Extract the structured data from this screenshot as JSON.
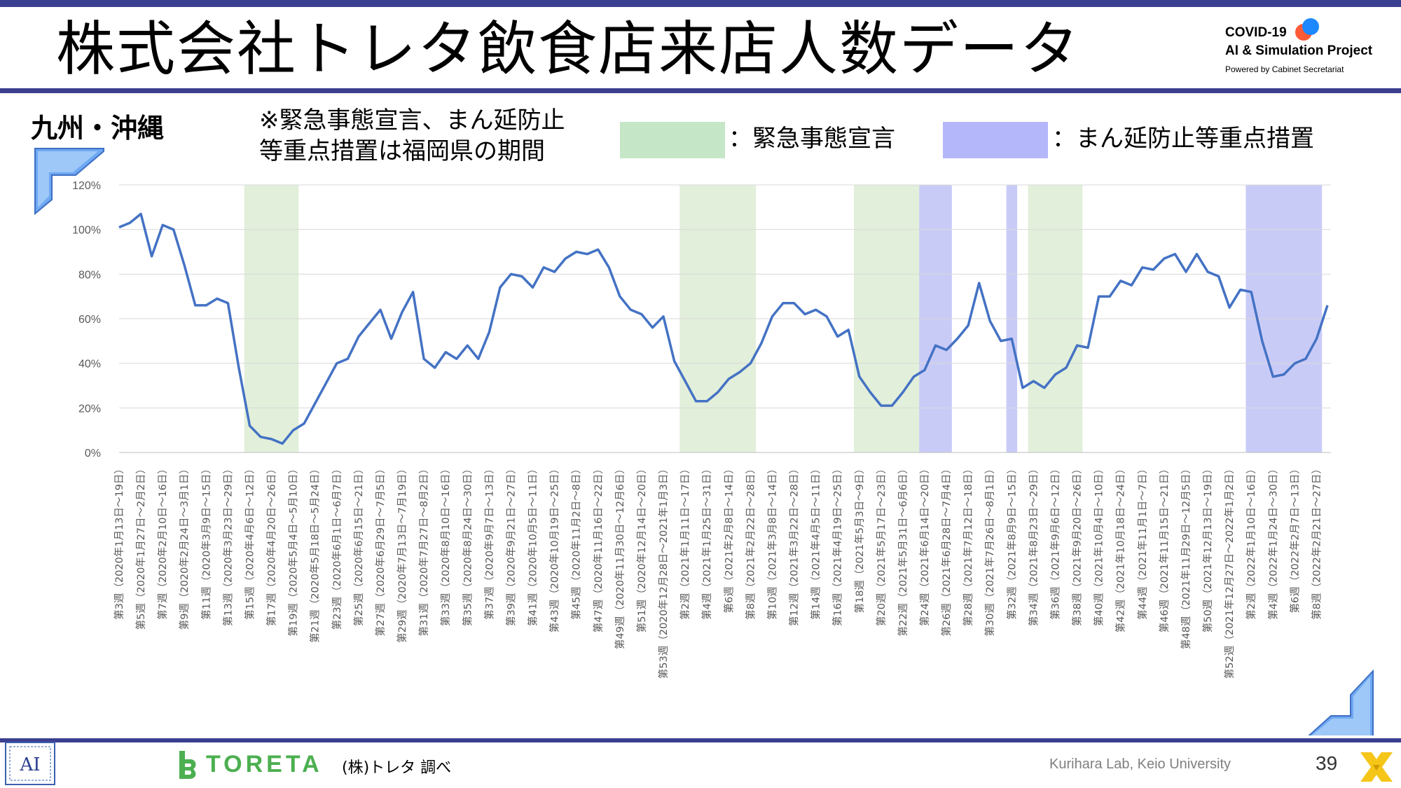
{
  "page": {
    "title": "株式会社トレタ飲食店来店人数データ",
    "region": "九州・沖縄",
    "note_line1": "※緊急事態宣言、まん延防止",
    "note_line2": "等重点措置は福岡県の期間",
    "legend_emergency": "：緊急事態宣言",
    "legend_manen": "：まん延防止等重点措置",
    "project_line1": "COVID-19",
    "project_line2": "AI & Simulation Project",
    "project_line3": "Powered by Cabinet Secretariat",
    "toreta": "TORETA",
    "source": "(株)トレタ 調べ",
    "credit": "Kurihara Lab, Keio University",
    "page_number": "39"
  },
  "colors": {
    "bar": "#3b3f8f",
    "line": "#4472c4",
    "emergency": "#e2efda",
    "emergency_legend": "#c5e6c7",
    "manen": "#c9cbf7",
    "manen_legend": "#b4b7fa",
    "grid": "#d9d9d9",
    "toreta": "#4caf50",
    "x_logo": "#f5c518"
  },
  "icons": [
    "corner-arrow-icon",
    "lab-logo-icon",
    "toreta-logo-icon",
    "x-logo-icon"
  ],
  "chart_data": {
    "type": "line",
    "ylabel": "",
    "xlabel": "",
    "ylim": [
      0,
      1.2
    ],
    "yticks": [
      "0%",
      "20%",
      "40%",
      "60%",
      "80%",
      "100%",
      "120%"
    ],
    "grid": true,
    "x_labels": [
      "第3週（2020年1月13日～19日）",
      "第5週（2020年1月27日～2月2日）",
      "第7週（2020年2月10日～16日）",
      "第9週（2020年2月24日～3月1日）",
      "第11週（2020年3月9日～15日）",
      "第13週（2020年3月23日～29日）",
      "第15週（2020年4月6日～12日）",
      "第17週（2020年4月20日～26日）",
      "第19週（2020年5月4日～5月10日）",
      "第21週（2020年5月18日～5月24日）",
      "第23週（2020年6月1日～6月7日）",
      "第25週（2020年6月15日～21日）",
      "第27週（2020年6月29日～7月5日）",
      "第29週（2020年7月13日～7月19日）",
      "第31週（2020年7月27日～8月2日）",
      "第33週（2020年8月10日～16日）",
      "第35週（2020年8月24日～30日）",
      "第37週（2020年9月7日～13日）",
      "第39週（2020年9月21日～27日）",
      "第41週（2020年10月5日～11日）",
      "第43週（2020年10月19日～25日）",
      "第45週（2020年11月2日～8日）",
      "第47週（2020年11月16日～22日）",
      "第49週（2020年11月30日～12月6日）",
      "第51週（2020年12月14日～20日）",
      "第53週（2020年12月28日～2021年1月3日）",
      "第2週（2021年1月11日～17日）",
      "第4週（2021年1月25日～31日）",
      "第6週（2021年2月8日～14日）",
      "第8週（2021年2月22日～28日）",
      "第10週（2021年3月8日～14日）",
      "第12週（2021年3月22日～28日）",
      "第14週（2021年4月5日～11日）",
      "第16週（2021年4月19日～25日）",
      "第18週（2021年5月3日～9日）",
      "第20週（2021年5月17日～23日）",
      "第22週（2021年5月31日～6月6日）",
      "第24週（2021年6月14日～20日）",
      "第26週（2021年6月28日～7月4日）",
      "第28週（2021年7月12日～18日）",
      "第30週（2021年7月26日～8月1日）",
      "第32週（2021年8月9日～15日）",
      "第34週（2021年8月23日～29日）",
      "第36週（2021年9月6日～12日）",
      "第38週（2021年9月20日～26日）",
      "第40週（2021年10月4日～10日）",
      "第42週（2021年10月18日～24日）",
      "第44週（2021年11月1日～7日）",
      "第46週（2021年11月15日～21日）",
      "第48週（2021年11月29日～12月5日）",
      "第50週（2021年12月13日～19日）",
      "第52週（2021年12月27日～2022年1月2日）",
      "第2週（2022年1月10日～16日）",
      "第4週（2022年1月24日～30日）",
      "第6週（2022年2月7日～13日）",
      "第8週（2022年2月21日～27日）"
    ],
    "series": [
      {
        "values": [
          1.01,
          1.03,
          1.07,
          0.88,
          1.02,
          1.0,
          0.84,
          0.66,
          0.66,
          0.69,
          0.67,
          0.38,
          0.12,
          0.07,
          0.06,
          0.04,
          0.1,
          0.13,
          0.22,
          0.31,
          0.4,
          0.42,
          0.52,
          0.58,
          0.64,
          0.51,
          0.63,
          0.72,
          0.42,
          0.38,
          0.45,
          0.42,
          0.48,
          0.42,
          0.54,
          0.74,
          0.8,
          0.79,
          0.74,
          0.83,
          0.81,
          0.87,
          0.9,
          0.89,
          0.91,
          0.83,
          0.7,
          0.64,
          0.62,
          0.56,
          0.61,
          0.41,
          0.32,
          0.23,
          0.23,
          0.27,
          0.33,
          0.36,
          0.4,
          0.49,
          0.61,
          0.67,
          0.67,
          0.62,
          0.64,
          0.61,
          0.52,
          0.55,
          0.34,
          0.27,
          0.21,
          0.21,
          0.27,
          0.34,
          0.37,
          0.48,
          0.46,
          0.51,
          0.57,
          0.76,
          0.59,
          0.5,
          0.51,
          0.29,
          0.32,
          0.29,
          0.35,
          0.38,
          0.48,
          0.47,
          0.7,
          0.7,
          0.77,
          0.75,
          0.83,
          0.82,
          0.87,
          0.89,
          0.81,
          0.89,
          0.81,
          0.79,
          0.65,
          0.73,
          0.72,
          0.5,
          0.34,
          0.35,
          0.4,
          0.42,
          0.51,
          0.66
        ]
      }
    ],
    "shaded_periods": [
      {
        "type": "emergency",
        "label": "緊急事態宣言",
        "from": "第15週（2020年4月6日～12日）",
        "to": "第19週（2020年5月4日～5月10日）"
      },
      {
        "type": "emergency",
        "label": "緊急事態宣言",
        "from": "第2週（2021年1月11日～17日）",
        "to": "第8週（2021年2月22日～28日）"
      },
      {
        "type": "emergency",
        "label": "緊急事態宣言",
        "from": "第18週（2021年5月3日～9日）",
        "to": "第24週（2021年6月14日～20日）"
      },
      {
        "type": "manen",
        "label": "まん延防止等重点措置",
        "from": "第24週（2021年6月14日～20日）",
        "to": "第26週（2021年6月28日～7月4日）"
      },
      {
        "type": "manen",
        "label": "まん延防止等重点措置",
        "from": "第32週（2021年8月9日～15日）",
        "to": "第33週"
      },
      {
        "type": "emergency",
        "label": "緊急事態宣言",
        "from": "第34週（2021年8月23日～29日）",
        "to": "第38週（2021年9月20日～26日）"
      },
      {
        "type": "manen",
        "label": "まん延防止等重点措置",
        "from": "第2週（2022年1月10日～16日）",
        "to": "第8週（2022年2月21日～27日）"
      }
    ]
  }
}
